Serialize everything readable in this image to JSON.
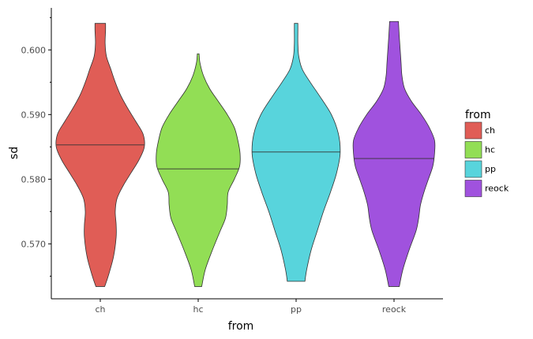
{
  "chart_data": {
    "type": "violin",
    "xlabel": "from",
    "ylabel": "sd",
    "categories": [
      "ch",
      "hc",
      "pp",
      "reock"
    ],
    "ylim": [
      0.5615,
      0.6065
    ],
    "yticks": [
      "0.570",
      "0.580",
      "0.590",
      "0.600"
    ],
    "grid": false,
    "legend": {
      "title": "from",
      "position": "right",
      "entries": [
        "ch",
        "hc",
        "pp",
        "reock"
      ]
    },
    "series": [
      {
        "name": "ch",
        "color": "#E05D56",
        "y_min": 0.5634,
        "y_max": 0.6041,
        "median": 0.5853,
        "profile": [
          [
            0.5634,
            0.1
          ],
          [
            0.565,
            0.18
          ],
          [
            0.568,
            0.3
          ],
          [
            0.571,
            0.36
          ],
          [
            0.573,
            0.36
          ],
          [
            0.575,
            0.34
          ],
          [
            0.577,
            0.38
          ],
          [
            0.579,
            0.52
          ],
          [
            0.581,
            0.7
          ],
          [
            0.583,
            0.88
          ],
          [
            0.585,
            1.0
          ],
          [
            0.587,
            0.97
          ],
          [
            0.589,
            0.8
          ],
          [
            0.591,
            0.62
          ],
          [
            0.593,
            0.46
          ],
          [
            0.595,
            0.34
          ],
          [
            0.597,
            0.24
          ],
          [
            0.599,
            0.14
          ],
          [
            0.601,
            0.11
          ],
          [
            0.603,
            0.12
          ],
          [
            0.6041,
            0.12
          ]
        ]
      },
      {
        "name": "hc",
        "color": "#92DE55",
        "y_min": 0.5634,
        "y_max": 0.5994,
        "median": 0.5816,
        "profile": [
          [
            0.5634,
            0.08
          ],
          [
            0.566,
            0.16
          ],
          [
            0.569,
            0.32
          ],
          [
            0.572,
            0.5
          ],
          [
            0.574,
            0.62
          ],
          [
            0.576,
            0.66
          ],
          [
            0.578,
            0.68
          ],
          [
            0.58,
            0.82
          ],
          [
            0.582,
            0.94
          ],
          [
            0.584,
            0.95
          ],
          [
            0.586,
            0.9
          ],
          [
            0.588,
            0.82
          ],
          [
            0.59,
            0.66
          ],
          [
            0.592,
            0.46
          ],
          [
            0.594,
            0.26
          ],
          [
            0.596,
            0.12
          ],
          [
            0.598,
            0.04
          ],
          [
            0.5994,
            0.02
          ]
        ]
      },
      {
        "name": "pp",
        "color": "#58D4DC",
        "y_min": 0.5642,
        "y_max": 0.6041,
        "median": 0.5842,
        "profile": [
          [
            0.5642,
            0.2
          ],
          [
            0.566,
            0.24
          ],
          [
            0.569,
            0.34
          ],
          [
            0.572,
            0.48
          ],
          [
            0.575,
            0.62
          ],
          [
            0.578,
            0.78
          ],
          [
            0.581,
            0.92
          ],
          [
            0.584,
            1.0
          ],
          [
            0.587,
            0.96
          ],
          [
            0.59,
            0.8
          ],
          [
            0.593,
            0.52
          ],
          [
            0.595,
            0.32
          ],
          [
            0.597,
            0.14
          ],
          [
            0.599,
            0.06
          ],
          [
            0.601,
            0.04
          ],
          [
            0.603,
            0.04
          ],
          [
            0.6041,
            0.04
          ]
        ]
      },
      {
        "name": "reock",
        "color": "#A052DE",
        "y_min": 0.5634,
        "y_max": 0.6044,
        "median": 0.5832,
        "profile": [
          [
            0.5634,
            0.12
          ],
          [
            0.566,
            0.2
          ],
          [
            0.569,
            0.34
          ],
          [
            0.572,
            0.5
          ],
          [
            0.574,
            0.56
          ],
          [
            0.576,
            0.6
          ],
          [
            0.578,
            0.68
          ],
          [
            0.58,
            0.78
          ],
          [
            0.582,
            0.88
          ],
          [
            0.584,
            0.92
          ],
          [
            0.586,
            0.92
          ],
          [
            0.588,
            0.8
          ],
          [
            0.59,
            0.62
          ],
          [
            0.592,
            0.4
          ],
          [
            0.594,
            0.24
          ],
          [
            0.596,
            0.18
          ],
          [
            0.598,
            0.16
          ],
          [
            0.6,
            0.14
          ],
          [
            0.602,
            0.12
          ],
          [
            0.6044,
            0.1
          ]
        ]
      }
    ]
  }
}
